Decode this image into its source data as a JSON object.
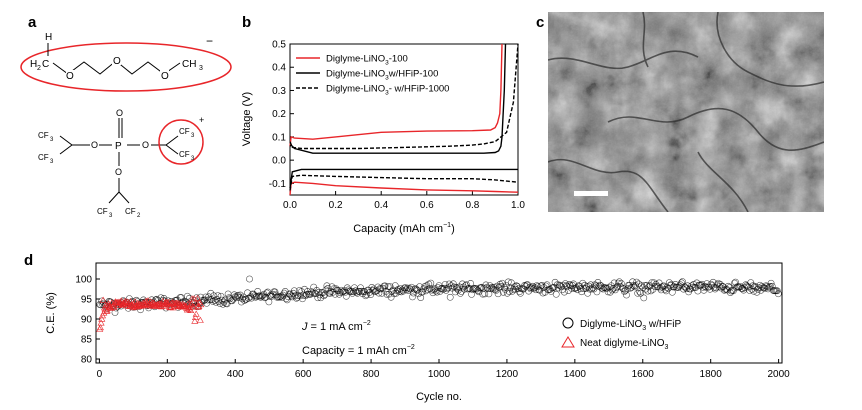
{
  "panels": {
    "a": "a",
    "b": "b",
    "c": "c",
    "d": "d"
  },
  "molecule_a": {
    "top_atoms": {
      "h": "H",
      "c": "C",
      "o": "O",
      "ch3": "CH",
      "sub2": "2",
      "sub3": "3",
      "charge": "−"
    },
    "bottom_atoms": {
      "cf3": "CF",
      "sub3": "3",
      "cf2": "CF",
      "sub2": "2",
      "o": "O",
      "p": "P",
      "charge": "+"
    }
  },
  "chart_b": {
    "type": "line",
    "ylabel": "Voltage (V)",
    "xlabel_prefix": "Capacity (mAh cm",
    "xlabel_sup": "−1",
    "xlabel_suffix": ")",
    "xlim": [
      0,
      1.0
    ],
    "ylim": [
      -0.15,
      0.5
    ],
    "xticks": [
      "0.0",
      "0.2",
      "0.4",
      "0.6",
      "0.8",
      "1.0"
    ],
    "yticks": [
      "0.5",
      "0.4",
      "0.3",
      "0.2",
      "0.1",
      "0.0",
      "-0.1"
    ],
    "legend": [
      {
        "main": "Diglyme-LiNO",
        "sub": "3",
        "tail": "-100",
        "color": "#e8262a",
        "dash": false
      },
      {
        "main": "Diglyme-LiNO",
        "sub": "3",
        "tail": "w/HFiP-100",
        "color": "#000000",
        "dash": false
      },
      {
        "main": "Diglyme-LiNO",
        "sub": "3",
        "tail": "- w/HFiP-1000",
        "color": "#000000",
        "dash": true
      }
    ],
    "series": [
      {
        "color": "#e8262a",
        "dash": false,
        "x": [
          0,
          0.005,
          0.02,
          0.1,
          0.2,
          0.4,
          0.6,
          0.8,
          0.88,
          0.9,
          0.91,
          0.92,
          0.925,
          0.93
        ],
        "y": [
          0.06,
          0.1,
          0.095,
          0.09,
          0.1,
          0.12,
          0.125,
          0.127,
          0.13,
          0.14,
          0.16,
          0.2,
          0.3,
          0.5
        ]
      },
      {
        "color": "#e8262a",
        "dash": false,
        "x": [
          0,
          0.005,
          0.02,
          0.1,
          0.2,
          0.4,
          0.6,
          0.8,
          0.9,
          1.0
        ],
        "y": [
          -0.15,
          -0.1,
          -0.095,
          -0.1,
          -0.11,
          -0.12,
          -0.128,
          -0.132,
          -0.135,
          -0.138
        ]
      },
      {
        "color": "#000000",
        "dash": false,
        "x": [
          0,
          0.005,
          0.02,
          0.1,
          0.3,
          0.5,
          0.7,
          0.85,
          0.9,
          0.915,
          0.925,
          0.93,
          0.94,
          0.945
        ],
        "y": [
          0.06,
          0.065,
          0.05,
          0.03,
          0.03,
          0.03,
          0.03,
          0.03,
          0.033,
          0.04,
          0.06,
          0.1,
          0.3,
          0.5
        ]
      },
      {
        "color": "#000000",
        "dash": false,
        "x": [
          0,
          0.01,
          0.05,
          0.2,
          0.4,
          0.6,
          0.8,
          1.0
        ],
        "y": [
          -0.12,
          -0.05,
          -0.04,
          -0.04,
          -0.04,
          -0.04,
          -0.04,
          -0.04
        ]
      },
      {
        "color": "#000000",
        "dash": true,
        "x": [
          0,
          0.01,
          0.05,
          0.3,
          0.5,
          0.7,
          0.8,
          0.85,
          0.9,
          0.95,
          0.98,
          1.0
        ],
        "y": [
          0.08,
          0.055,
          0.05,
          0.05,
          0.055,
          0.06,
          0.065,
          0.07,
          0.08,
          0.12,
          0.25,
          0.5
        ]
      },
      {
        "color": "#000000",
        "dash": true,
        "x": [
          0,
          0.01,
          0.05,
          0.2,
          0.4,
          0.6,
          0.8,
          0.9,
          0.95,
          1.0
        ],
        "y": [
          -0.13,
          -0.07,
          -0.065,
          -0.07,
          -0.075,
          -0.08,
          -0.08,
          -0.085,
          -0.09,
          -0.095
        ]
      }
    ]
  },
  "chart_d": {
    "type": "scatter",
    "ylabel": "C.E. (%)",
    "xlabel": "Cycle no.",
    "xlim": [
      -10,
      2010
    ],
    "ylim": [
      79,
      104
    ],
    "xticks": [
      "0",
      "200",
      "400",
      "600",
      "800",
      "1000",
      "1200",
      "1400",
      "1600",
      "1800",
      "2000"
    ],
    "yticks": [
      "100",
      "95",
      "90",
      "85",
      "80"
    ],
    "annotation_j": {
      "j": "J",
      "eq": " = 1 mA cm",
      "sup": "−2"
    },
    "annotation_cap": {
      "text": "Capacity = 1 mAh cm",
      "sup": "−2"
    },
    "legend": [
      {
        "main": "Diglyme-LiNO",
        "sub": "3",
        "tail": " w/HFiP",
        "marker": "circle",
        "color": "#000000"
      },
      {
        "main": "Neat diglyme-LiNO",
        "sub": "3",
        "tail": "",
        "marker": "triangle",
        "color": "#e8262a"
      }
    ],
    "series": [
      {
        "name": "Diglyme-LiNO3 w/HFiP",
        "marker": "circle",
        "color": "#000000",
        "n_points": 2000,
        "trend_x": [
          1,
          50,
          300,
          600,
          1000,
          1400,
          1800,
          2000
        ],
        "trend_y": [
          93.5,
          93.5,
          94.5,
          96.5,
          97.5,
          98.0,
          98.0,
          97.5
        ]
      },
      {
        "name": "Neat diglyme-LiNO3",
        "marker": "triangle",
        "color": "#e8262a",
        "n_points": 300,
        "trend_x": [
          1,
          10,
          50,
          250,
          300
        ],
        "trend_y": [
          87,
          92,
          93.8,
          93.5,
          92.0
        ]
      }
    ]
  },
  "colors": {
    "red": "#e8262a",
    "black": "#000000",
    "sem_gray": "#7d7d7d"
  }
}
